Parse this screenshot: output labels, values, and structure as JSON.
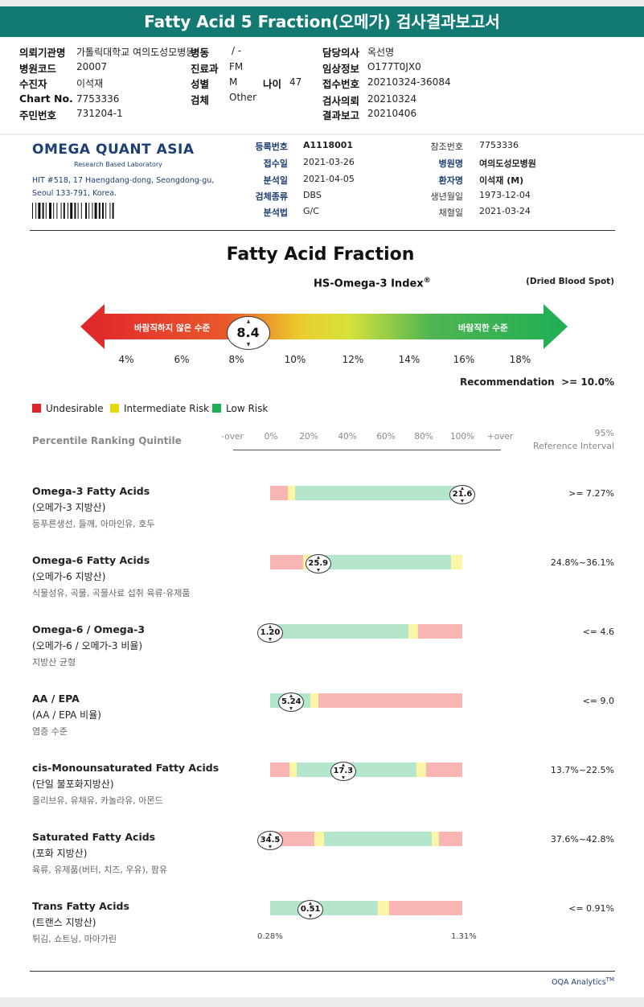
{
  "title": "Fatty Acid 5 Fraction(오메가) 검사결과보고서",
  "header": {
    "fields": [
      {
        "label": "의뢰기관명",
        "value": "가톨릭대학교 여의도성모병동"
      },
      {
        "label": "병원코드",
        "value": "20007"
      },
      {
        "label": "수진자",
        "value": "이석재"
      },
      {
        "label": "Chart No.",
        "value": "7753336"
      },
      {
        "label": "주민번호",
        "value": "731204-1"
      },
      {
        "label": "병동",
        "value": "/ -"
      },
      {
        "label": "진료과",
        "value": "FM"
      },
      {
        "label": "성별",
        "value": "M"
      },
      {
        "label": "나이",
        "value": "47"
      },
      {
        "label": "검체",
        "value": "Other"
      },
      {
        "label": "담당의사",
        "value": "옥선명"
      },
      {
        "label": "임상정보",
        "value": "O177T0JX0"
      },
      {
        "label": "접수번호",
        "value": "20210324-36084"
      },
      {
        "label": "검사의뢰",
        "value": "20210324"
      },
      {
        "label": "결과보고",
        "value": "20210406"
      }
    ]
  },
  "lab": {
    "name": "OMEGA QUANT ASIA",
    "tagline": "Research Based Laboratory",
    "address1": "HIT #518, 17 Haengdang-dong, Seongdong-gu,",
    "address2": "Seoul 133-791, Korea."
  },
  "meta": {
    "left": [
      {
        "label": "등록번호",
        "value": "A1118001",
        "bold": true
      },
      {
        "label": "접수일",
        "value": "2021-03-26"
      },
      {
        "label": "분석일",
        "value": "2021-04-05"
      },
      {
        "label": "검체종류",
        "value": "DBS"
      },
      {
        "label": "분석법",
        "value": "G/C"
      }
    ],
    "right": [
      {
        "label": "참조번호",
        "value": "7753336"
      },
      {
        "label": "병원명",
        "value": "여의도성모병원",
        "bold": true
      },
      {
        "label": "환자명",
        "value": "이석재 (M)",
        "bold": true
      },
      {
        "label": "생년월일",
        "value": "1973-12-04"
      },
      {
        "label": "채혈일",
        "value": "2021-03-24"
      }
    ]
  },
  "index": {
    "section_title": "Fatty Acid Fraction",
    "index_name": "HS-Omega-3 Index",
    "index_mark": "®",
    "sample_type": "(Dried Blood Spot)",
    "left_label": "바람직하지 않은 수준",
    "right_label": "바람직한 수준",
    "value": 8.4,
    "value_text": "8.4",
    "ticks": [
      "4%",
      "6%",
      "8%",
      "10%",
      "12%",
      "14%",
      "16%",
      "18%"
    ],
    "tick_values": [
      4,
      6,
      8,
      10,
      12,
      14,
      16,
      18
    ],
    "recommendation_label": "Recommendation",
    "recommendation_value": ">= 10.0%"
  },
  "legend": [
    {
      "label": "Undesirable",
      "color": "#e0242b"
    },
    {
      "label": "Intermediate Risk",
      "color": "#e6d70f"
    },
    {
      "label": "Low Risk",
      "color": "#1fae55"
    }
  ],
  "scale": {
    "title": "Percentile Ranking Quintile",
    "ticks": [
      "-over",
      "0%",
      "20%",
      "40%",
      "60%",
      "80%",
      "100%",
      "+over"
    ],
    "ref_label1": "95%",
    "ref_label2": "Reference Interval"
  },
  "colors": {
    "red": "#f9b4b4",
    "yellow": "#fdf5a6",
    "green": "#b3e6cb"
  },
  "rows": [
    {
      "title": "Omega-3 Fatty Acids",
      "subtitle": "(오메가-3 지방산)",
      "desc": "등푸른생선, 들깨, 아마인유, 호두",
      "value_text": "21.6",
      "position_pct": 100,
      "ref": ">= 7.27%",
      "segments": [
        [
          "red",
          9
        ],
        [
          "yellow",
          4
        ],
        [
          "green",
          87
        ]
      ]
    },
    {
      "title": "Omega-6 Fatty Acids",
      "subtitle": "(오메가-6 지방산)",
      "desc": "식물성유, 곡물, 곡물사료 섭취 육류·유제품",
      "value_text": "25.9",
      "position_pct": 25,
      "ref": "24.8%~36.1%",
      "segments": [
        [
          "red",
          17
        ],
        [
          "yellow",
          6
        ],
        [
          "green",
          71
        ],
        [
          "yellow",
          6
        ]
      ]
    },
    {
      "title": "Omega-6 / Omega-3",
      "subtitle": "(오메가-6 / 오메가-3 비율)",
      "desc": "지방산 균형",
      "value_text": "1.20",
      "position_pct": 0,
      "ref": "<= 4.6",
      "segments": [
        [
          "green",
          72
        ],
        [
          "yellow",
          5
        ],
        [
          "red",
          23
        ]
      ]
    },
    {
      "title": "AA / EPA",
      "subtitle": "(AA / EPA 비율)",
      "desc": "염증 수준",
      "value_text": "5.24",
      "position_pct": 11,
      "ref": "<= 9.0",
      "segments": [
        [
          "green",
          21
        ],
        [
          "yellow",
          4
        ],
        [
          "red",
          75
        ]
      ]
    },
    {
      "title": "cis-Monounsaturated Fatty Acids",
      "subtitle": "(단일 불포화지방산)",
      "desc": "올리브유, 유채유, 카놀라유, 아몬드",
      "value_text": "17.3",
      "position_pct": 38,
      "ref": "13.7%~22.5%",
      "segments": [
        [
          "red",
          10
        ],
        [
          "yellow",
          4
        ],
        [
          "green",
          62
        ],
        [
          "yellow",
          5
        ],
        [
          "red",
          19
        ]
      ]
    },
    {
      "title": "Saturated Fatty Acids",
      "subtitle": "(포화 지방산)",
      "desc": "육류, 유제품(버터, 치즈, 우유), 팜유",
      "value_text": "34.5",
      "position_pct": 0,
      "ref": "37.6%~42.8%",
      "segments": [
        [
          "red",
          23
        ],
        [
          "yellow",
          5
        ],
        [
          "green",
          56
        ],
        [
          "yellow",
          4
        ],
        [
          "red",
          12
        ]
      ]
    },
    {
      "title": "Trans Fatty Acids",
      "subtitle": "(트랜스 지방산)",
      "desc": "튀김, 쇼트닝, 마아가린",
      "value_text": "0.51",
      "position_pct": 21,
      "ref": "<= 0.91%",
      "segments": [
        [
          "green",
          56
        ],
        [
          "yellow",
          6
        ],
        [
          "red",
          38
        ]
      ]
    }
  ],
  "trans_range": {
    "min": "0.28%",
    "max": "1.31%"
  },
  "footer": {
    "brand": "OQA Analytics",
    "mark": "TM"
  }
}
